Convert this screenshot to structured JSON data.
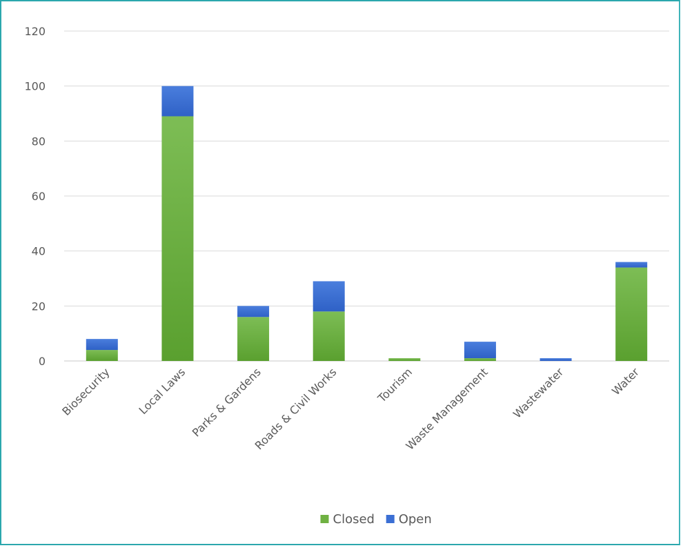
{
  "chart_data": {
    "type": "bar",
    "stacked": true,
    "categories": [
      "Biosecurity",
      "Local Laws",
      "Parks & Gardens",
      "Roads & Civil Works",
      "Tourism",
      "Waste Management",
      "Wastewater",
      "Water"
    ],
    "series": [
      {
        "name": "Closed",
        "color": "#6fb142",
        "values": [
          4,
          89,
          16,
          18,
          1,
          1,
          0,
          34
        ]
      },
      {
        "name": "Open",
        "color": "#3b6fd4",
        "values": [
          4,
          11,
          4,
          11,
          0,
          6,
          1,
          2
        ]
      }
    ],
    "y_ticks": [
      "0",
      "20",
      "40",
      "60",
      "80",
      "100",
      "120"
    ],
    "ylim": [
      0,
      120
    ],
    "grid": true,
    "legend_position": "bottom"
  }
}
